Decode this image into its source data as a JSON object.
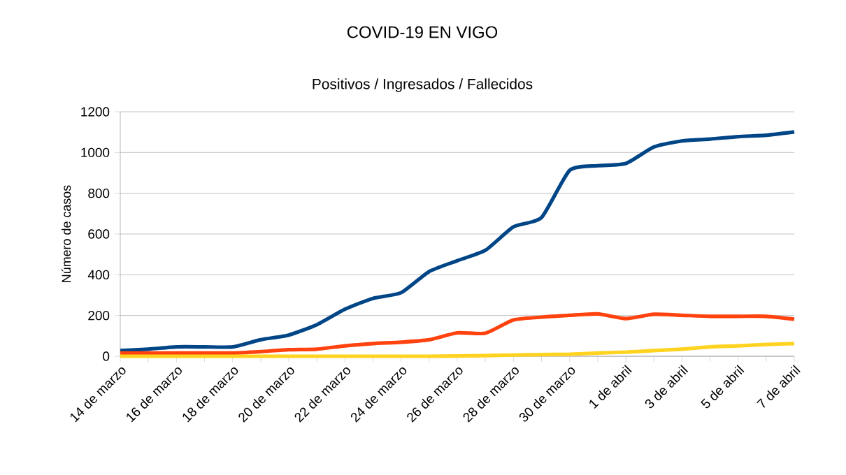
{
  "chart_data": {
    "type": "line",
    "title": "COVID-19 EN VIGO",
    "subtitle": "Positivos / Ingresados / Fallecidos",
    "ylabel": "Número de casos",
    "categories": [
      "14 de marzo",
      null,
      "16 de marzo",
      null,
      "18 de marzo",
      null,
      "20 de marzo",
      null,
      "22 de marzo",
      null,
      "24 de marzo",
      null,
      "26 de marzo",
      null,
      "28 de marzo",
      null,
      "30 de marzo",
      null,
      "1 de abril",
      null,
      "3 de abril",
      null,
      "5 de abril",
      null,
      "7 de abril"
    ],
    "series": [
      {
        "color": "#004586",
        "values": [
          28,
          35,
          46,
          46,
          46,
          81,
          104,
          155,
          231,
          284,
          312,
          416,
          469,
          520,
          635,
          681,
          912,
          935,
          946,
          1027,
          1057,
          1066,
          1078,
          1085,
          1101
        ]
      },
      {
        "color": "#ff420e",
        "values": [
          16,
          16,
          16,
          16,
          16,
          23,
          32,
          35,
          51,
          62,
          69,
          81,
          115,
          113,
          178,
          192,
          201,
          208,
          185,
          206,
          201,
          196,
          196,
          196,
          182
        ]
      },
      {
        "color": "#ffd320",
        "values": [
          0,
          0,
          0,
          0,
          0,
          0,
          0,
          0,
          0,
          0,
          0,
          0,
          1,
          3,
          6,
          8,
          10,
          16,
          20,
          28,
          35,
          46,
          51,
          58,
          62
        ]
      }
    ],
    "ylim": [
      0,
      1200
    ],
    "yticks": [
      0,
      200,
      400,
      600,
      800,
      1000,
      1200
    ],
    "grid": "y",
    "marker": "none",
    "line_style": "solid"
  }
}
